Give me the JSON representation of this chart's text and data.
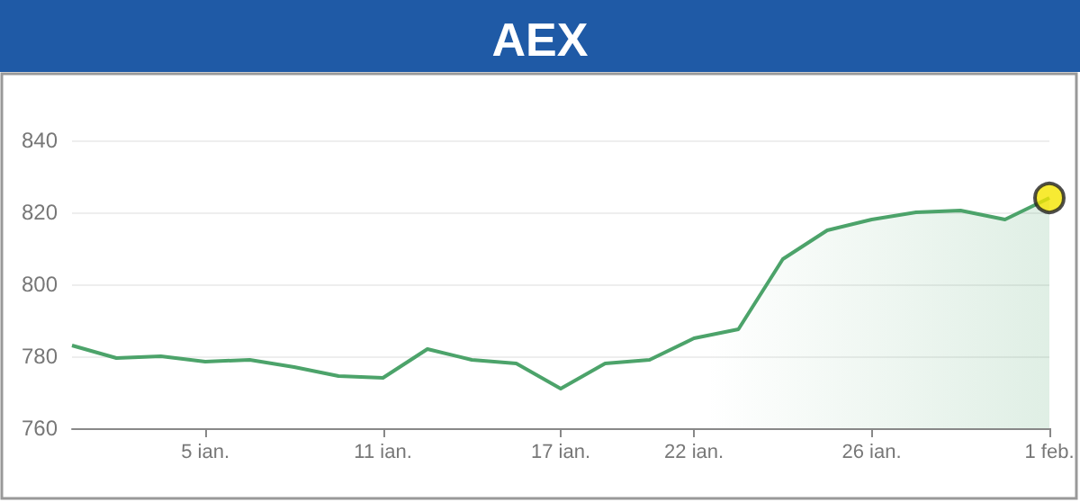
{
  "chart_data": {
    "type": "area",
    "title": "AEX",
    "categories": [
      null,
      null,
      null,
      "5 ian.",
      null,
      null,
      null,
      "11 ian.",
      null,
      null,
      null,
      "17 ian.",
      null,
      null,
      "22 ian.",
      null,
      null,
      null,
      "26 ian.",
      null,
      null,
      null,
      "1 feb."
    ],
    "series": [
      {
        "color": "#4ca36a",
        "values": [
          783,
          779.5,
          780,
          778.5,
          779,
          777,
          774.5,
          774,
          782,
          779,
          778,
          771,
          778,
          779,
          785,
          787.5,
          807,
          815,
          818,
          820,
          820.5,
          818,
          824
        ]
      },
      {
        "type": "scatter",
        "marker": "circle",
        "color": "#f5e500",
        "x": [
          "1 feb."
        ],
        "values": [
          824
        ]
      }
    ],
    "ylim": [
      760,
      840
    ],
    "yticks": [
      760,
      780,
      800,
      820,
      840
    ],
    "grid": "y",
    "marker": "none"
  }
}
